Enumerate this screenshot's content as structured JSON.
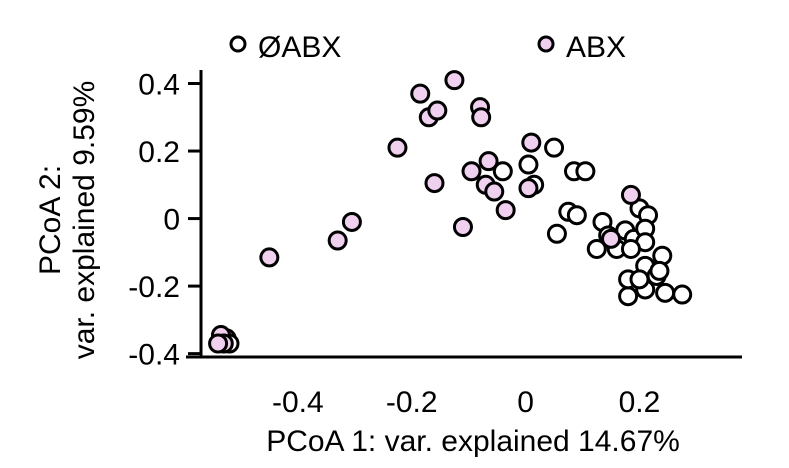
{
  "chart_data": {
    "type": "scatter",
    "title": "",
    "xlabel": "PCoA 1: var. explained 14.67%",
    "ylabel_line1": "PCoA 2:",
    "ylabel_line2": "var. explained 9.59%",
    "xlim": [
      -0.57,
      0.38
    ],
    "ylim": [
      -0.41,
      0.44
    ],
    "xticks": [
      -0.4,
      -0.2,
      0,
      0.2
    ],
    "xtick_labels": [
      "-0.4",
      "-0.2",
      "0",
      "0.2"
    ],
    "yticks": [
      0.4,
      0.2,
      0,
      -0.2,
      -0.4
    ],
    "ytick_labels": [
      "0.4",
      "0.2",
      "0",
      "-0.2",
      "-0.4"
    ],
    "grid": false,
    "legend_position": "top",
    "series": [
      {
        "name": "ØABX",
        "color": "#ffffff",
        "points": [
          [
            0.005,
            0.16
          ],
          [
            0.015,
            0.1
          ],
          [
            0.05,
            0.21
          ],
          [
            0.085,
            0.14
          ],
          [
            0.105,
            0.14
          ],
          [
            0.075,
            0.02
          ],
          [
            0.09,
            0.01
          ],
          [
            0.055,
            -0.045
          ],
          [
            0.125,
            -0.09
          ],
          [
            0.135,
            -0.01
          ],
          [
            0.145,
            -0.05
          ],
          [
            0.16,
            -0.09
          ],
          [
            0.175,
            -0.035
          ],
          [
            0.19,
            -0.06
          ],
          [
            0.2,
            0.03
          ],
          [
            0.215,
            0.01
          ],
          [
            0.21,
            -0.03
          ],
          [
            0.21,
            -0.07
          ],
          [
            0.185,
            -0.09
          ],
          [
            0.21,
            -0.14
          ],
          [
            0.23,
            -0.17
          ],
          [
            0.24,
            -0.11
          ],
          [
            0.21,
            -0.21
          ],
          [
            0.18,
            -0.23
          ],
          [
            0.18,
            -0.18
          ],
          [
            0.245,
            -0.22
          ],
          [
            0.275,
            -0.225
          ],
          [
            0.2,
            -0.18
          ],
          [
            0.235,
            -0.155
          ],
          [
            -0.04,
            0.14
          ],
          [
            -0.525,
            -0.355
          ],
          [
            -0.52,
            -0.37
          ]
        ]
      },
      {
        "name": "ABX",
        "color": "#f0d0ef",
        "points": [
          [
            -0.125,
            0.41
          ],
          [
            -0.185,
            0.37
          ],
          [
            -0.17,
            0.3
          ],
          [
            -0.155,
            0.32
          ],
          [
            -0.08,
            0.33
          ],
          [
            -0.078,
            0.3
          ],
          [
            -0.225,
            0.21
          ],
          [
            -0.095,
            0.14
          ],
          [
            -0.065,
            0.17
          ],
          [
            -0.16,
            0.105
          ],
          [
            -0.07,
            0.1
          ],
          [
            -0.055,
            0.08
          ],
          [
            -0.035,
            0.025
          ],
          [
            0.005,
            0.09
          ],
          [
            0.01,
            0.225
          ],
          [
            -0.11,
            -0.025
          ],
          [
            -0.33,
            -0.065
          ],
          [
            -0.305,
            -0.01
          ],
          [
            -0.45,
            -0.115
          ],
          [
            0.185,
            0.07
          ],
          [
            0.15,
            -0.06
          ],
          [
            -0.535,
            -0.345
          ],
          [
            -0.53,
            -0.37
          ],
          [
            -0.54,
            -0.37
          ]
        ]
      }
    ]
  }
}
